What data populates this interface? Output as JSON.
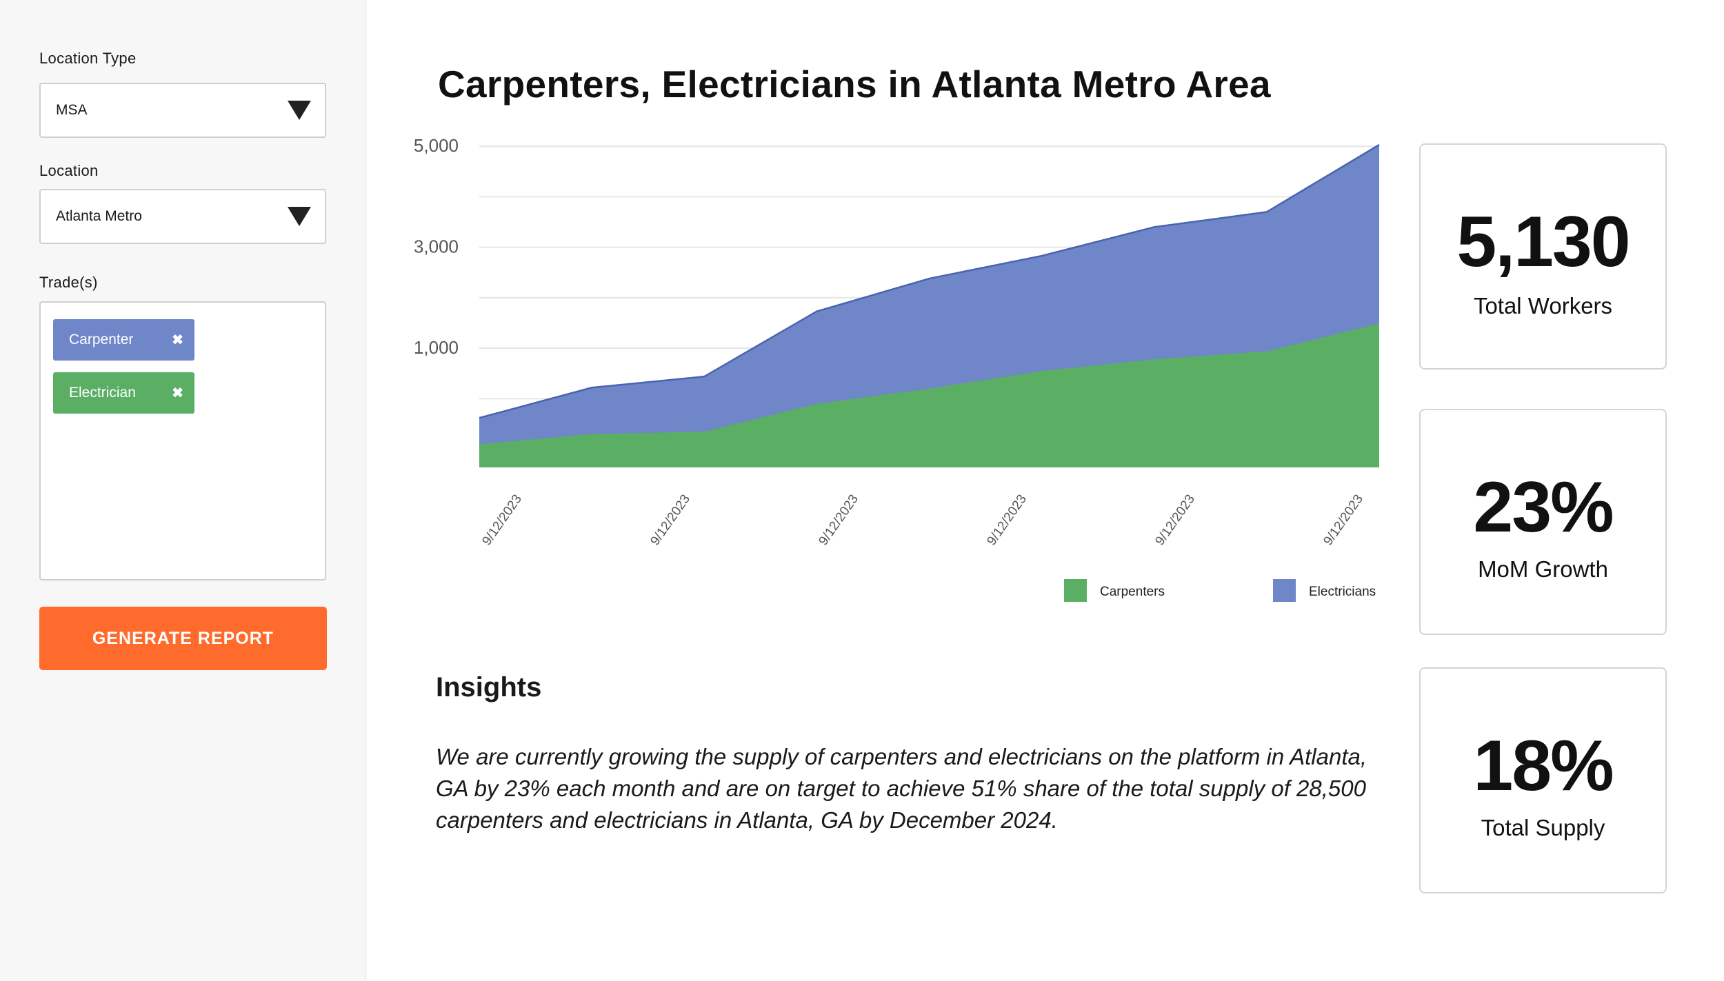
{
  "sidebar": {
    "location_type": {
      "label": "Location Type",
      "value": "MSA"
    },
    "location": {
      "label": "Location",
      "value": "Atlanta Metro"
    },
    "trades": {
      "label": "Trade(s)",
      "tags": [
        {
          "label": "Carpenter",
          "color": "#6f86c8",
          "remove_icon": "x-icon"
        },
        {
          "label": "Electrician",
          "color": "#5aaf64",
          "remove_icon": "x-icon"
        }
      ]
    },
    "generate_button": {
      "label": "GENERATE REPORT",
      "color": "#ff6b2c"
    }
  },
  "main": {
    "title": "Carpenters, Electricians in Atlanta Metro Area",
    "insights": {
      "title": "Insights",
      "text": "We are currently growing the supply of carpenters and electricians on the platform in Atlanta, GA by 23% each month and are on target to achieve 51% share of the total supply of 28,500 carpenters  and electricians in Atlanta, GA by December 2024."
    }
  },
  "stats": [
    {
      "value": "5,130",
      "label": "Total Workers"
    },
    {
      "value": "23%",
      "label": "MoM Growth"
    },
    {
      "value": "18%",
      "label": "Total Supply"
    }
  ],
  "chart_data": {
    "type": "area",
    "stacked": true,
    "x_tick_labels": [
      "9/12/2023",
      "9/12/2023",
      "9/12/2023",
      "9/12/2023",
      "9/12/2023",
      "9/12/2023"
    ],
    "y_tick_labels": [
      "5,000",
      "3,000",
      "1,000"
    ],
    "y_ticks": [
      5000,
      3000,
      1000
    ],
    "ylim": [
      -1360,
      5030
    ],
    "grid": true,
    "legend_position": "bottom-right",
    "series": [
      {
        "name": "Carpenters",
        "color": "#5aaf64",
        "x": [
          0,
          1,
          2,
          3,
          4,
          5,
          6,
          7,
          8
        ],
        "values": [
          -900,
          -700,
          -650,
          -100,
          200,
          550,
          780,
          940,
          1490
        ]
      },
      {
        "name": "Electricians",
        "color": "#6f86c8",
        "x": [
          0,
          1,
          2,
          3,
          4,
          5,
          6,
          7,
          8
        ],
        "values": [
          520,
          920,
          1090,
          1830,
          2180,
          2280,
          2620,
          2760,
          3540
        ]
      }
    ]
  }
}
